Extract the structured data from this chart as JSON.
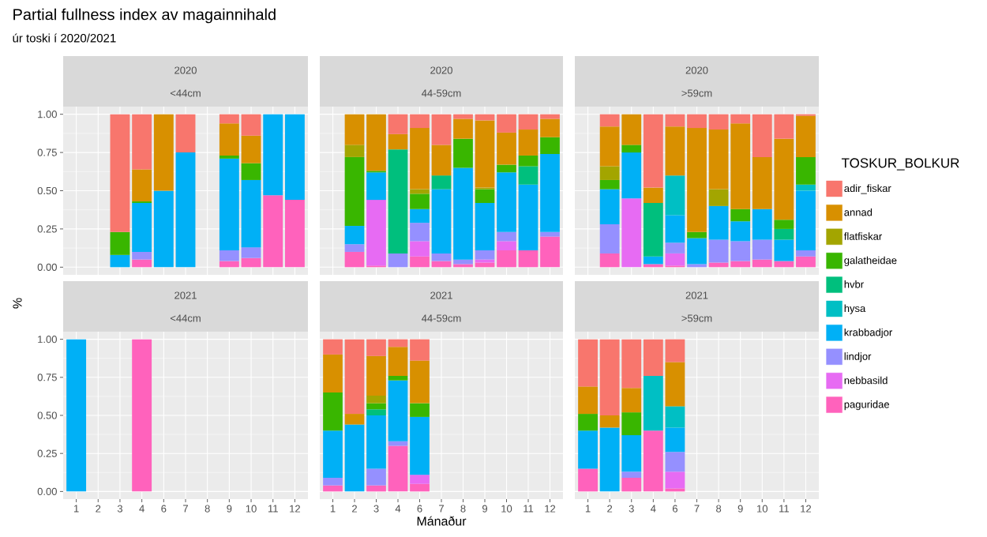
{
  "chart_data": [
    {
      "type": "bar",
      "stacked": true,
      "title": "2020",
      "subtitle": "<44cm",
      "ylabel": "%",
      "annotations": [
        "Partial fullness index av magainnihald",
        "úr toski í 2020/2021"
      ],
      "categories": [
        "1",
        "2",
        "3",
        "4",
        "6",
        "7",
        "8",
        "9",
        "10",
        "11",
        "12"
      ],
      "ylim": [
        -0.05,
        1.05
      ],
      "yticks": [
        {
          "value": 0,
          "label": "0.00"
        },
        {
          "value": 0.25,
          "label": "0.25"
        },
        {
          "value": 0.5,
          "label": "0.50"
        },
        {
          "value": 0.75,
          "label": "0.75"
        },
        {
          "value": 1,
          "label": "1.00"
        }
      ],
      "grid": true,
      "tick_labels": "y",
      "series": [
        {
          "color": "#ff62bc",
          "values": [
            null,
            null,
            null,
            0.05,
            null,
            null,
            null,
            0.04,
            0.06,
            0.47,
            0.44
          ]
        },
        {
          "color": "#9590ff",
          "values": [
            null,
            null,
            null,
            0.05,
            null,
            null,
            null,
            0.07,
            0.07,
            null,
            null
          ]
        },
        {
          "color": "#00b0f6",
          "values": [
            null,
            null,
            0.08,
            0.32,
            0.5,
            0.75,
            null,
            0.6,
            0.44,
            0.53,
            0.56
          ]
        },
        {
          "color": "#39b600",
          "values": [
            null,
            null,
            0.15,
            0.01,
            null,
            null,
            null,
            0.02,
            0.11,
            null,
            null
          ]
        },
        {
          "color": "#d89000",
          "values": [
            null,
            null,
            null,
            0.21,
            0.5,
            null,
            null,
            0.21,
            0.18,
            null,
            null
          ]
        },
        {
          "color": "#f8766d",
          "values": [
            null,
            null,
            0.77,
            0.36,
            null,
            0.25,
            null,
            0.06,
            0.14,
            null,
            null
          ]
        }
      ]
    },
    {
      "type": "bar",
      "stacked": true,
      "title": "2020",
      "subtitle": "44-59cm",
      "categories": [
        "1",
        "2",
        "3",
        "4",
        "6",
        "7",
        "8",
        "9",
        "10",
        "11",
        "12"
      ],
      "ylim": [
        -0.05,
        1.05
      ],
      "yticks": [
        0,
        0.25,
        0.5,
        0.75,
        1
      ],
      "grid": true,
      "tick_labels": false,
      "series": [
        {
          "color": "#ff62bc",
          "values": [
            null,
            0.1,
            0.01,
            null,
            0.07,
            0.04,
            0.02,
            0.03,
            0.11,
            0.11,
            0.2
          ]
        },
        {
          "color": "#e76bf3",
          "values": [
            null,
            null,
            0.43,
            null,
            0.1,
            null,
            null,
            0.02,
            0.06,
            null,
            null
          ]
        },
        {
          "color": "#9590ff",
          "values": [
            null,
            0.05,
            null,
            0.09,
            0.12,
            0.05,
            0.03,
            0.06,
            0.06,
            null,
            0.03
          ]
        },
        {
          "color": "#00b0f6",
          "values": [
            null,
            0.12,
            0.18,
            null,
            0.09,
            0.42,
            0.6,
            0.31,
            0.39,
            0.43,
            0.51
          ]
        },
        {
          "color": "#00bf7d",
          "values": [
            null,
            null,
            null,
            0.68,
            null,
            0.09,
            null,
            null,
            null,
            0.12,
            null
          ]
        },
        {
          "color": "#39b600",
          "values": [
            null,
            0.45,
            0.01,
            null,
            0.1,
            null,
            0.19,
            0.09,
            0.05,
            0.07,
            0.11
          ]
        },
        {
          "color": "#a3a500",
          "values": [
            null,
            0.08,
            null,
            null,
            0.03,
            null,
            null,
            0.01,
            null,
            null,
            null
          ]
        },
        {
          "color": "#d89000",
          "values": [
            null,
            0.2,
            0.37,
            0.1,
            0.4,
            0.2,
            0.13,
            0.44,
            0.21,
            0.17,
            0.12
          ]
        },
        {
          "color": "#f8766d",
          "values": [
            null,
            null,
            null,
            0.13,
            0.09,
            0.2,
            0.03,
            0.04,
            0.12,
            0.1,
            0.03
          ]
        }
      ]
    },
    {
      "type": "bar",
      "stacked": true,
      "title": "2020",
      "subtitle": ">59cm",
      "legend": "right",
      "legend_title": "TOSKUR_BOLKUR",
      "categories": [
        "1",
        "2",
        "3",
        "4",
        "6",
        "7",
        "8",
        "9",
        "10",
        "11",
        "12"
      ],
      "ylim": [
        -0.05,
        1.05
      ],
      "yticks": [
        0,
        0.25,
        0.5,
        0.75,
        1
      ],
      "grid": true,
      "tick_labels": false,
      "series": [
        {
          "name": "paguridae",
          "color": "#ff62bc",
          "values": [
            null,
            0.09,
            null,
            0.02,
            0.01,
            null,
            0.03,
            0.04,
            0.05,
            0.04,
            0.07
          ]
        },
        {
          "name": "nebbasild",
          "color": "#e76bf3",
          "values": [
            null,
            null,
            0.45,
            null,
            0.08,
            null,
            null,
            null,
            null,
            null,
            null
          ]
        },
        {
          "name": "lindjor",
          "color": "#9590ff",
          "values": [
            null,
            0.19,
            null,
            null,
            0.07,
            0.02,
            0.15,
            0.13,
            0.13,
            null,
            0.04
          ]
        },
        {
          "name": "krabbadjor",
          "color": "#00b0f6",
          "values": [
            null,
            0.23,
            0.3,
            0.05,
            0.18,
            0.17,
            0.22,
            0.13,
            0.2,
            0.14,
            0.39
          ]
        },
        {
          "name": "hysa",
          "color": "#00bfc4",
          "values": [
            null,
            null,
            null,
            null,
            0.26,
            null,
            null,
            null,
            null,
            null,
            0.04
          ]
        },
        {
          "name": "hvbr",
          "color": "#00bf7d",
          "values": [
            null,
            null,
            null,
            0.35,
            null,
            null,
            null,
            null,
            null,
            0.07,
            null
          ]
        },
        {
          "name": "galatheidae",
          "color": "#39b600",
          "values": [
            null,
            0.06,
            0.05,
            null,
            null,
            0.04,
            null,
            0.08,
            null,
            0.06,
            0.18
          ]
        },
        {
          "name": "flatfiskar",
          "color": "#a3a500",
          "values": [
            null,
            0.09,
            null,
            null,
            null,
            null,
            0.11,
            null,
            null,
            null,
            null
          ]
        },
        {
          "name": "annad",
          "color": "#d89000",
          "values": [
            null,
            0.26,
            0.2,
            0.1,
            0.32,
            0.68,
            0.39,
            0.56,
            0.34,
            0.53,
            0.27
          ]
        },
        {
          "name": "adir_fiskar",
          "color": "#f8766d",
          "values": [
            null,
            0.08,
            null,
            0.48,
            0.08,
            0.09,
            0.1,
            0.06,
            0.28,
            0.16,
            0.01
          ]
        }
      ]
    },
    {
      "type": "bar",
      "stacked": true,
      "title": "2021",
      "subtitle": "<44cm",
      "categories": [
        "1",
        "2",
        "3",
        "4",
        "6",
        "7",
        "8",
        "9",
        "10",
        "11",
        "12"
      ],
      "ylim": [
        -0.05,
        1.05
      ],
      "yticks": [
        {
          "value": 0,
          "label": "0.00"
        },
        {
          "value": 0.25,
          "label": "0.25"
        },
        {
          "value": 0.5,
          "label": "0.50"
        },
        {
          "value": 0.75,
          "label": "0.75"
        },
        {
          "value": 1,
          "label": "1.00"
        }
      ],
      "grid": true,
      "series": [
        {
          "color": "#ff62bc",
          "values": [
            null,
            null,
            null,
            1,
            null,
            null,
            null,
            null,
            null,
            null,
            null
          ]
        },
        {
          "color": "#00b0f6",
          "values": [
            1,
            null,
            null,
            null,
            null,
            null,
            null,
            null,
            null,
            null,
            null
          ]
        }
      ]
    },
    {
      "type": "bar",
      "stacked": true,
      "title": "2021",
      "subtitle": "44-59cm",
      "xlabel": "Mánaður",
      "categories": [
        "1",
        "2",
        "3",
        "4",
        "6",
        "7",
        "8",
        "9",
        "10",
        "11",
        "12"
      ],
      "ylim": [
        -0.05,
        1.05
      ],
      "yticks": [
        0,
        0.25,
        0.5,
        0.75,
        1
      ],
      "grid": true,
      "tick_labels": "x",
      "series": [
        {
          "color": "#ff62bc",
          "values": [
            0.04,
            null,
            0.04,
            0.3,
            0.05,
            null,
            null,
            null,
            null,
            null,
            null
          ]
        },
        {
          "color": "#e76bf3",
          "values": [
            null,
            null,
            null,
            null,
            0.06,
            null,
            null,
            null,
            null,
            null,
            null
          ]
        },
        {
          "color": "#9590ff",
          "values": [
            0.05,
            null,
            0.11,
            0.03,
            null,
            null,
            null,
            null,
            null,
            null,
            null
          ]
        },
        {
          "color": "#00b0f6",
          "values": [
            0.31,
            0.44,
            0.35,
            0.4,
            0.38,
            null,
            null,
            null,
            null,
            null,
            null
          ]
        },
        {
          "color": "#00bf7d",
          "values": [
            null,
            null,
            0.04,
            null,
            null,
            null,
            null,
            null,
            null,
            null,
            null
          ]
        },
        {
          "color": "#39b600",
          "values": [
            0.25,
            null,
            0.04,
            0.03,
            0.09,
            null,
            null,
            null,
            null,
            null,
            null
          ]
        },
        {
          "color": "#a3a500",
          "values": [
            null,
            null,
            0.05,
            null,
            null,
            null,
            null,
            null,
            null,
            null,
            null
          ]
        },
        {
          "color": "#d89000",
          "values": [
            0.25,
            0.07,
            0.26,
            0.19,
            0.28,
            null,
            null,
            null,
            null,
            null,
            null
          ]
        },
        {
          "color": "#f8766d",
          "values": [
            0.1,
            0.49,
            0.11,
            0.05,
            0.14,
            null,
            null,
            null,
            null,
            null,
            null
          ]
        }
      ]
    },
    {
      "type": "bar",
      "stacked": true,
      "title": "2021",
      "subtitle": ">59cm",
      "categories": [
        "1",
        "2",
        "3",
        "4",
        "6",
        "7",
        "8",
        "9",
        "10",
        "11",
        "12"
      ],
      "ylim": [
        -0.05,
        1.05
      ],
      "yticks": [
        0,
        0.25,
        0.5,
        0.75,
        1
      ],
      "grid": true,
      "tick_labels": "x",
      "series": [
        {
          "color": "#ff62bc",
          "values": [
            0.15,
            null,
            0.09,
            0.4,
            0.02,
            null,
            null,
            null,
            null,
            null,
            null
          ]
        },
        {
          "color": "#e76bf3",
          "values": [
            null,
            null,
            null,
            null,
            0.11,
            null,
            null,
            null,
            null,
            null,
            null
          ]
        },
        {
          "color": "#9590ff",
          "values": [
            null,
            null,
            0.04,
            null,
            0.13,
            null,
            null,
            null,
            null,
            null,
            null
          ]
        },
        {
          "color": "#00b0f6",
          "values": [
            0.25,
            0.42,
            0.24,
            null,
            0.16,
            null,
            null,
            null,
            null,
            null,
            null
          ]
        },
        {
          "color": "#00bfc4",
          "values": [
            null,
            null,
            null,
            0.36,
            0.14,
            null,
            null,
            null,
            null,
            null,
            null
          ]
        },
        {
          "color": "#39b600",
          "values": [
            0.11,
            null,
            0.15,
            null,
            null,
            null,
            null,
            null,
            null,
            null,
            null
          ]
        },
        {
          "color": "#d89000",
          "values": [
            0.18,
            0.08,
            0.16,
            null,
            0.29,
            null,
            null,
            null,
            null,
            null,
            null
          ]
        },
        {
          "color": "#f8766d",
          "values": [
            0.31,
            0.5,
            0.32,
            0.24,
            0.15,
            null,
            null,
            null,
            null,
            null,
            null
          ]
        }
      ]
    }
  ]
}
